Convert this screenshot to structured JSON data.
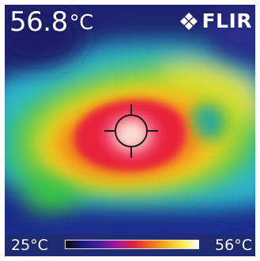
{
  "readout": {
    "value": "56.8",
    "unit": "°C"
  },
  "brand": {
    "name": "FLIR",
    "icon": "flir-logo-icon"
  },
  "scale": {
    "min_label": "25°C",
    "max_label": "56°C"
  },
  "palette": {
    "background_cold": "#1c1f6b",
    "cool": "#2fb5d0",
    "green": "#38c24a",
    "warm": "#f2c81e",
    "orange": "#f38a1a",
    "hot": "#e8233a",
    "hottest": "#f7d8d2"
  },
  "marker": {
    "icon": "crosshair-icon"
  }
}
